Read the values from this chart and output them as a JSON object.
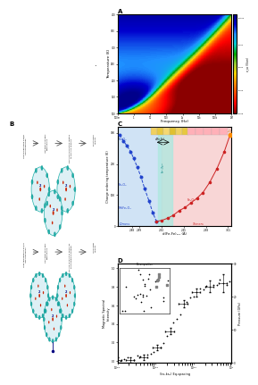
{
  "panel_A": {
    "label": "A",
    "xlabel": "Frequency (Hz)",
    "ylabel": "Temperature (K)",
    "colorbar_label": "σ_ac (S/cm)",
    "xtick_labels": [
      "100m",
      "1",
      "10",
      "100",
      "1k",
      "10k",
      "100k",
      "1M"
    ],
    "ytick_vals": [
      100,
      150,
      200,
      250,
      300,
      350,
      400
    ]
  },
  "panel_B": {
    "label": "B",
    "row1_texts": [
      "Low temperature and/or\nhigh frequencies",
      "low grain boundary\npenetrations",
      "electrical conduction related\nto electron hopping",
      "short range\nmobility"
    ],
    "row2_texts": [
      "High temperature and/or\nlow frequencies",
      "high grain boundary\npenetrations",
      "DC-like conduction driven by\nshort polarons hopping",
      "long range\nmobility"
    ]
  },
  "panel_C": {
    "label": "C",
    "xlabel": "d(Fe-Fe)₁₀₀ (Å)",
    "ylabel": "Charge ordering temperature (K)",
    "xmin": 2.86,
    "xmax": 3.015,
    "ymin": 0,
    "ymax": 320
  },
  "panel_D": {
    "label": "D",
    "xlabel": "(ks-ks₀) Eq-spacing",
    "ylabel": "Magnetic Spectral\nIntensity",
    "ylabel_right": "Pressure (GPa)"
  }
}
